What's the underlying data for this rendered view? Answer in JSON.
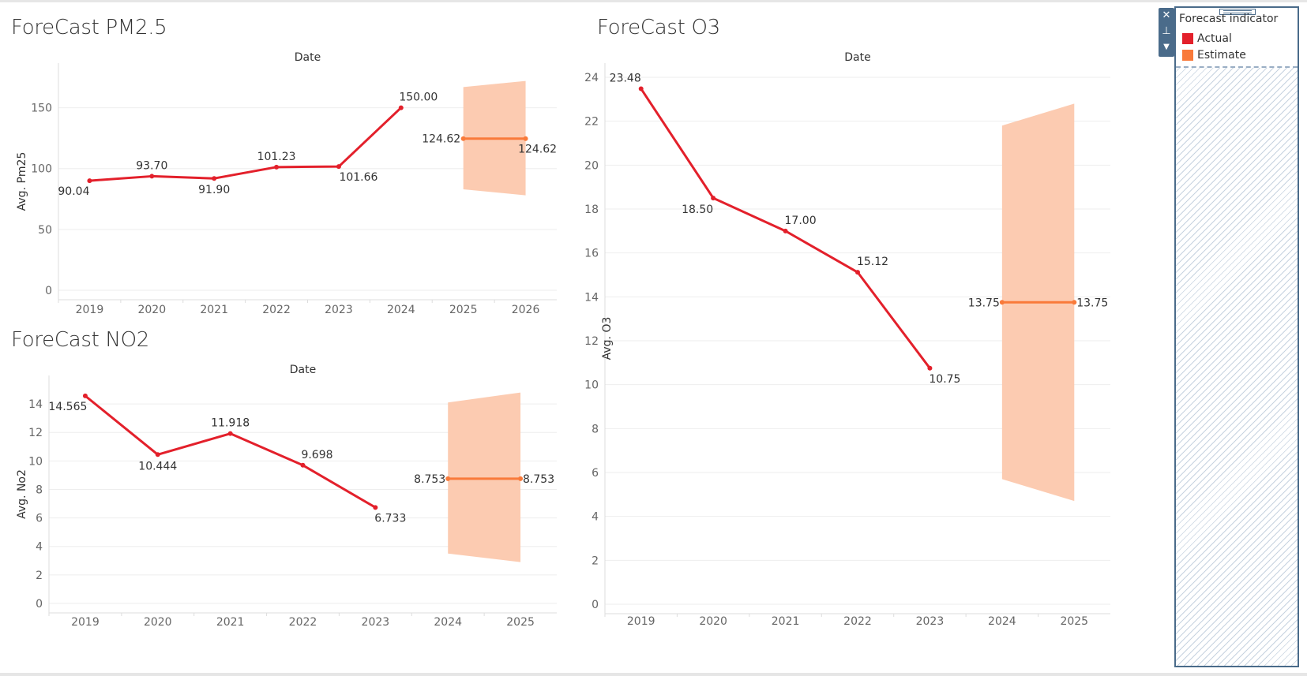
{
  "charts": {
    "pm25": {
      "title": "ForeCast PM2.5"
    },
    "no2": {
      "title": "ForeCast NO2"
    },
    "o3": {
      "title": "ForeCast O3"
    }
  },
  "legend": {
    "title": "Forecast indicator",
    "items": [
      {
        "label": "Actual",
        "color": "#e3202b"
      },
      {
        "label": "Estimate",
        "color": "#f97a3a"
      }
    ]
  },
  "toolbar": {
    "close_icon": "close-icon",
    "pin_icon": "pin-icon",
    "menu_icon": "dropdown-arrow-icon"
  },
  "chart_data": [
    {
      "id": "pm25",
      "type": "line",
      "title": "ForeCast PM2.5",
      "xlabel": "Date",
      "ylabel": "Avg. Pm25",
      "categories": [
        "2019",
        "2020",
        "2021",
        "2022",
        "2023",
        "2024",
        "2025",
        "2026"
      ],
      "ylim": [
        0,
        175
      ],
      "yticks": [
        0,
        50,
        100,
        150
      ],
      "actual": {
        "name": "Actual",
        "x": [
          "2019",
          "2020",
          "2021",
          "2022",
          "2023",
          "2024"
        ],
        "values": [
          90.04,
          93.7,
          91.9,
          101.23,
          101.66,
          150.0
        ],
        "labels": [
          "90.04",
          "93.70",
          "91.90",
          "101.23",
          "101.66",
          "150.00"
        ]
      },
      "estimate": {
        "name": "Estimate",
        "x": [
          "2025",
          "2026"
        ],
        "values": [
          124.62,
          124.62
        ],
        "labels": [
          "124.62",
          "124.62"
        ]
      },
      "band": {
        "x": [
          "2025",
          "2026"
        ],
        "upper": [
          167,
          172
        ],
        "lower": [
          83,
          78
        ]
      },
      "grid": true
    },
    {
      "id": "no2",
      "type": "line",
      "title": "ForeCast NO2",
      "xlabel": "Date",
      "ylabel": "Avg. No2",
      "categories": [
        "2019",
        "2020",
        "2021",
        "2022",
        "2023",
        "2024",
        "2025"
      ],
      "ylim": [
        0,
        15
      ],
      "yticks": [
        0,
        2,
        4,
        6,
        8,
        10,
        12,
        14
      ],
      "actual": {
        "name": "Actual",
        "x": [
          "2019",
          "2020",
          "2021",
          "2022",
          "2023"
        ],
        "values": [
          14.565,
          10.444,
          11.918,
          9.698,
          6.733
        ],
        "labels": [
          "14.565",
          "10.444",
          "11.918",
          "9.698",
          "6.733"
        ]
      },
      "estimate": {
        "name": "Estimate",
        "x": [
          "2024",
          "2025"
        ],
        "values": [
          8.753,
          8.753
        ],
        "labels": [
          "8.753",
          "8.753"
        ]
      },
      "band": {
        "x": [
          "2024",
          "2025"
        ],
        "upper": [
          14.1,
          14.8
        ],
        "lower": [
          3.5,
          2.9
        ]
      },
      "grid": true
    },
    {
      "id": "o3",
      "type": "line",
      "title": "ForeCast O3",
      "xlabel": "Date",
      "ylabel": "Avg. O3",
      "categories": [
        "2019",
        "2020",
        "2021",
        "2022",
        "2023",
        "2024",
        "2025"
      ],
      "ylim": [
        0,
        24
      ],
      "yticks": [
        0,
        2,
        4,
        6,
        8,
        10,
        12,
        14,
        16,
        18,
        20,
        22,
        24
      ],
      "actual": {
        "name": "Actual",
        "x": [
          "2019",
          "2020",
          "2021",
          "2022",
          "2023"
        ],
        "values": [
          23.48,
          18.5,
          17.0,
          15.12,
          10.75
        ],
        "labels": [
          "23.48",
          "18.50",
          "17.00",
          "15.12",
          "10.75"
        ]
      },
      "estimate": {
        "name": "Estimate",
        "x": [
          "2024",
          "2025"
        ],
        "values": [
          13.75,
          13.75
        ],
        "labels": [
          "13.75",
          "13.75"
        ]
      },
      "band": {
        "x": [
          "2024",
          "2025"
        ],
        "upper": [
          21.8,
          22.8
        ],
        "lower": [
          5.7,
          4.7
        ]
      },
      "grid": true
    }
  ],
  "colors": {
    "actual": "#e3202b",
    "estimate": "#f97a3a",
    "band": "#fcc8ad",
    "grid": "#eeeeee",
    "axis": "#dddddd"
  }
}
